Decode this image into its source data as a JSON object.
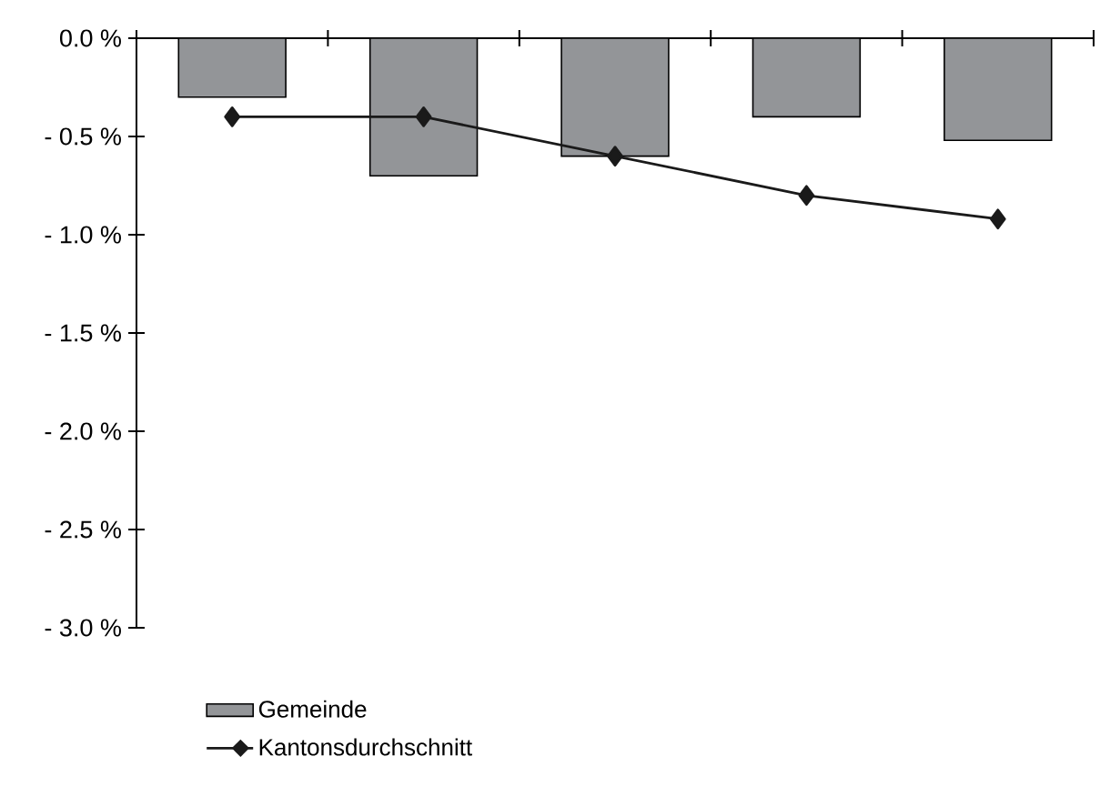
{
  "chart_data": {
    "type": "bar",
    "categories": [
      null,
      null,
      null,
      null,
      null
    ],
    "series": [
      {
        "name": "Gemeinde",
        "color": "#939598",
        "values": [
          -0.3,
          -0.7,
          -0.6,
          -0.4,
          -0.52
        ]
      },
      {
        "name": "Kantonsdurchschnitt",
        "type": "line",
        "color": "#1a1a1a",
        "marker": "diamond",
        "values": [
          -0.4,
          -0.4,
          -0.6,
          -0.8,
          -0.92
        ]
      }
    ],
    "ylim": [
      -3.0,
      0.0
    ],
    "yticks": [
      {
        "value": 0.0,
        "label": "0.0 %"
      },
      {
        "value": -0.5,
        "label": "- 0.5 %"
      },
      {
        "value": -1.0,
        "label": "- 1.0 %"
      },
      {
        "value": -1.5,
        "label": "- 1.5 %"
      },
      {
        "value": -2.0,
        "label": "- 2.0 %"
      },
      {
        "value": -2.5,
        "label": "- 2.5 %"
      },
      {
        "value": -3.0,
        "label": "- 3.0 %"
      }
    ],
    "tick_labels": "y",
    "grid": false,
    "legend": "bottom"
  }
}
